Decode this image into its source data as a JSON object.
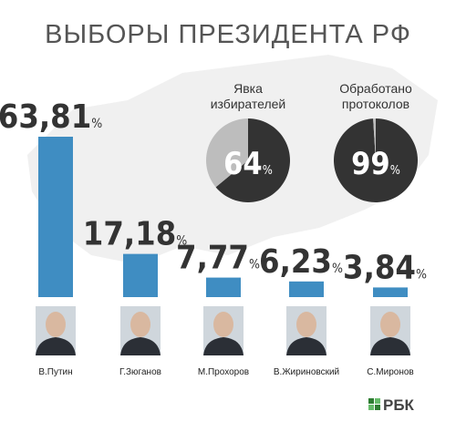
{
  "chart_data": [
    {
      "type": "bar",
      "title": "ВЫБОРЫ ПРЕЗИДЕНТА РФ",
      "categories": [
        "В.Путин",
        "Г.Зюганов",
        "М.Прохоров",
        "В.Жириновский",
        "С.Миронов"
      ],
      "values": [
        63.81,
        17.18,
        7.77,
        6.23,
        3.84
      ],
      "value_labels": [
        "63,81",
        "17,18",
        "7,77",
        "6,23",
        "3,84"
      ],
      "unit": "%",
      "color": "#3f8dc2"
    },
    {
      "type": "pie",
      "title": [
        "Явка",
        "избирателей"
      ],
      "values": [
        64,
        36
      ],
      "colors": [
        "#333333",
        "#bdbdbd"
      ],
      "label": "64",
      "unit": "%"
    },
    {
      "type": "pie",
      "title": [
        "Обработано",
        "протоколов"
      ],
      "values": [
        99,
        1
      ],
      "colors": [
        "#333333",
        "#bdbdbd"
      ],
      "label": "99",
      "unit": "%"
    }
  ],
  "logo": "РБК"
}
